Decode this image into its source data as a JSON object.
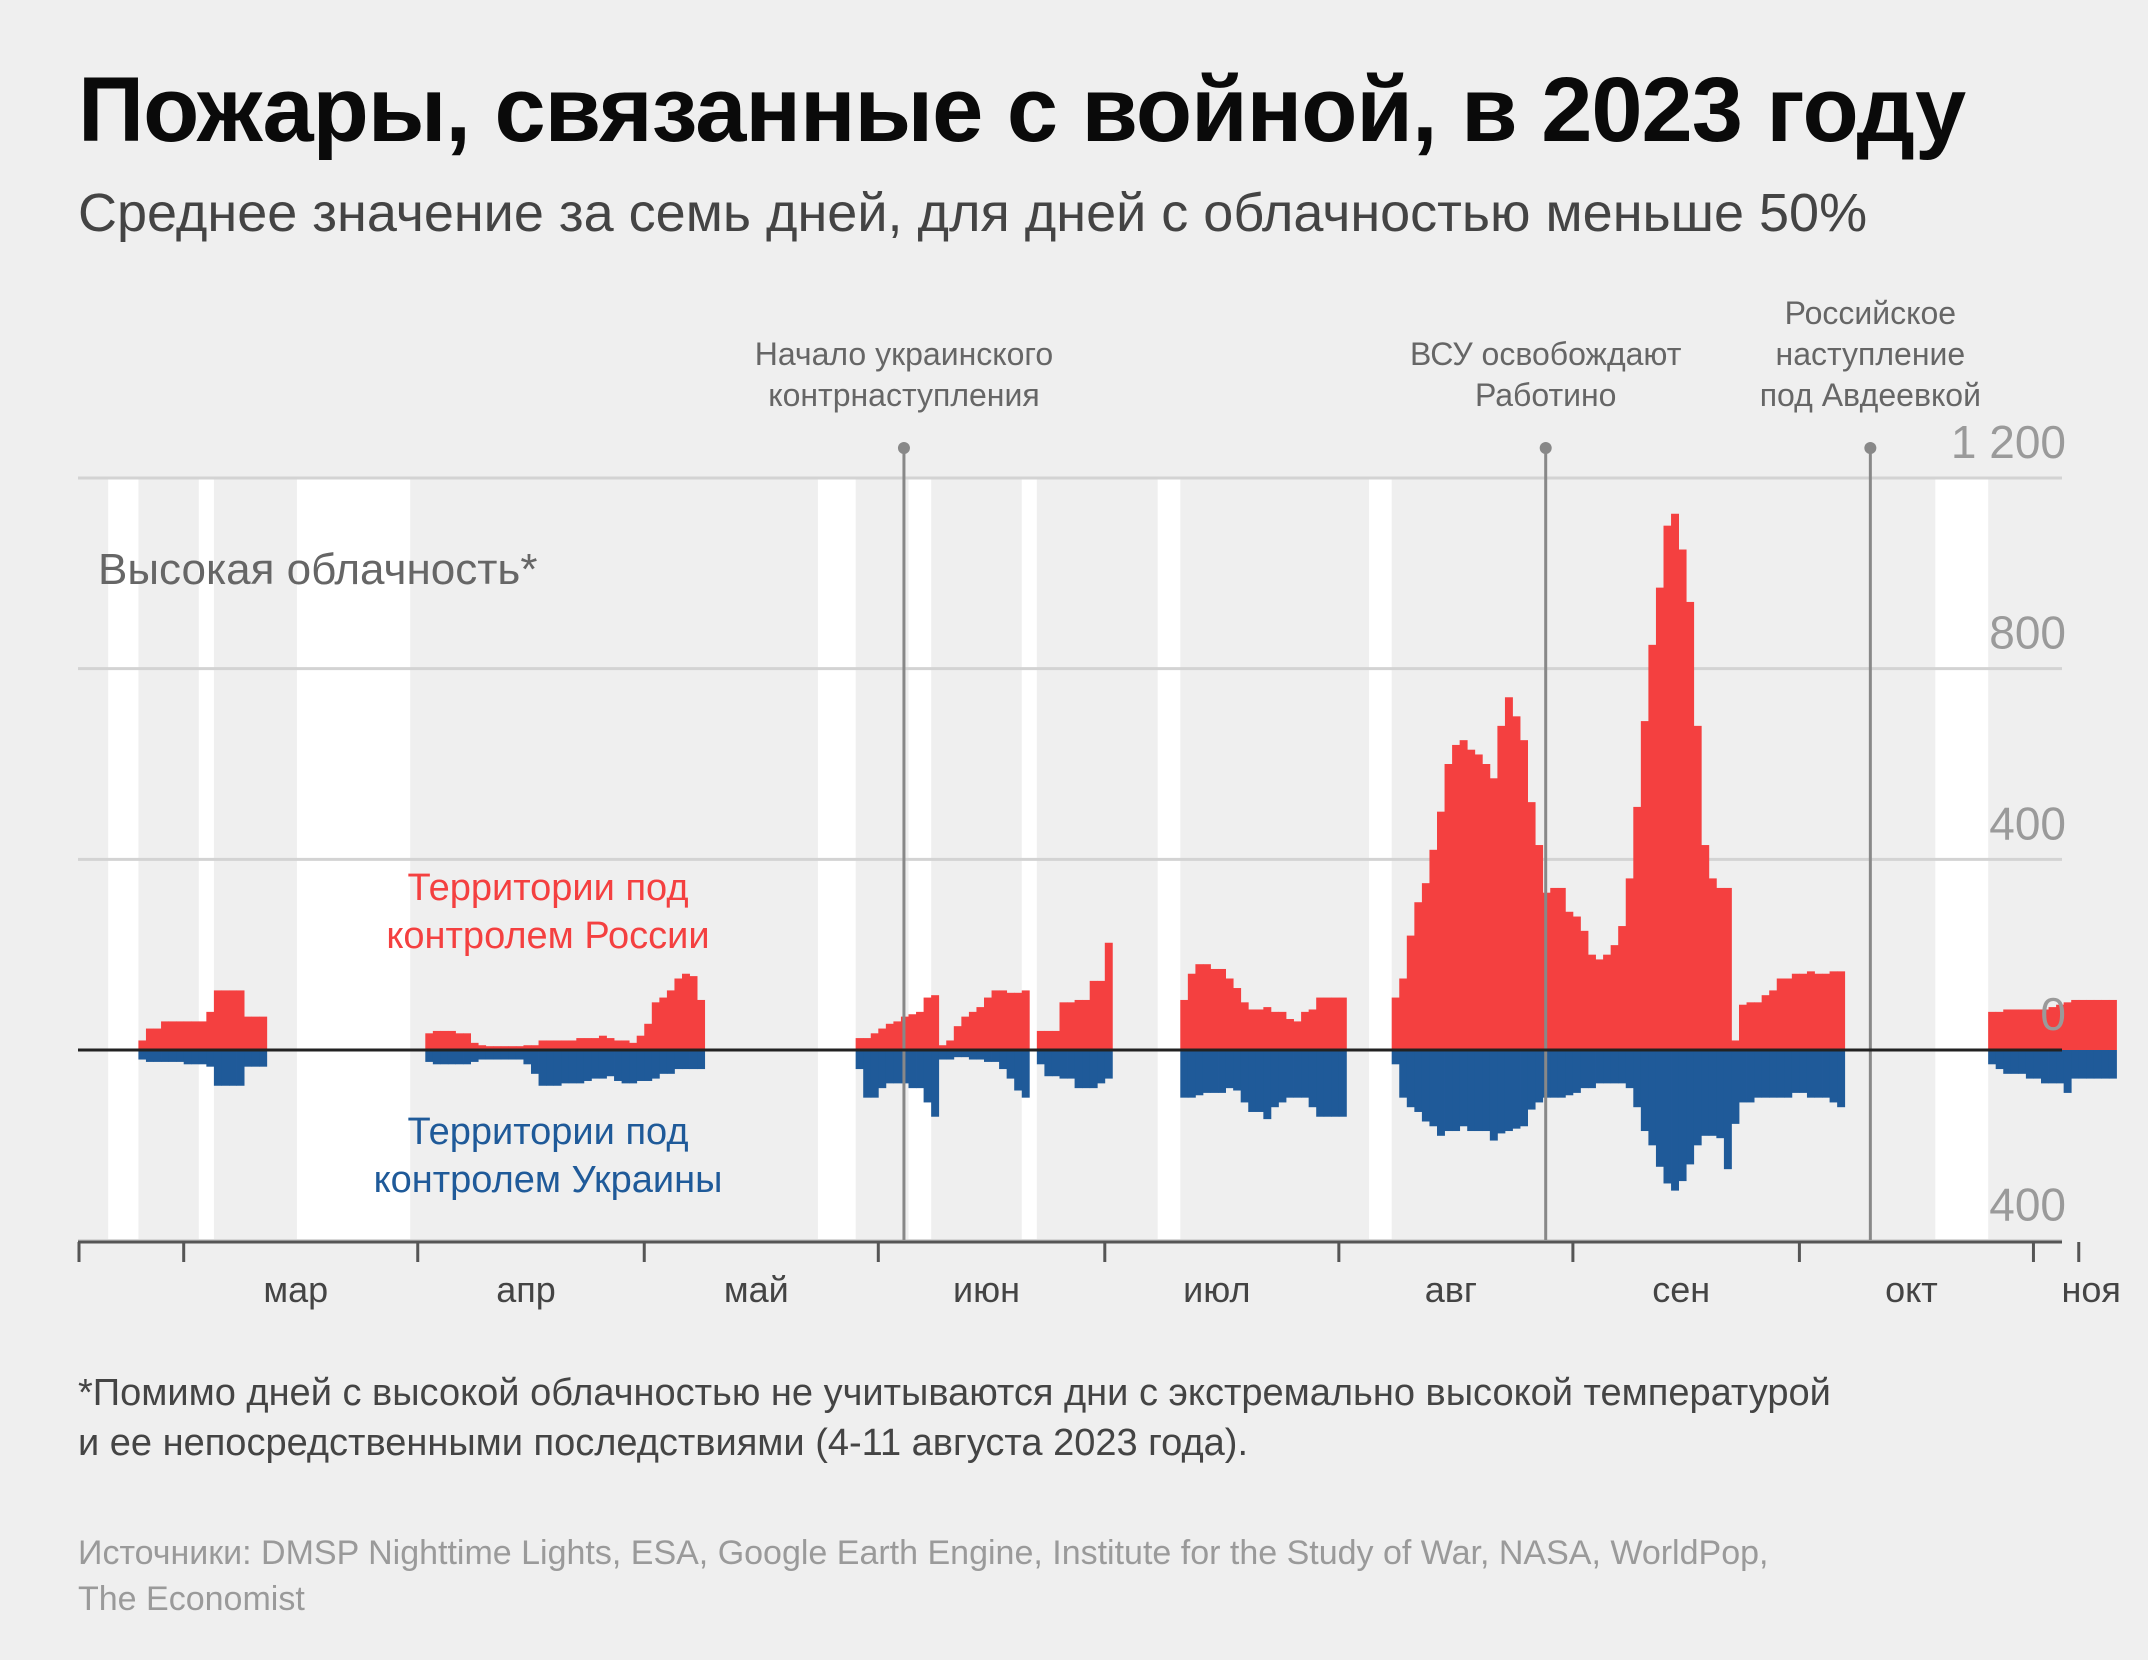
{
  "title": "Пожары, связанные с войной, в 2023 году",
  "subtitle": "Среднее значение за семь дней, для дней с облачностью меньше 50%",
  "footnote": [
    " *Помимо дней с высокой облачностью не учитываются дни с экстремально высокой температурой",
    "и ее непосредственными последствиями (4-11 августа 2023 года)."
  ],
  "sources": [
    "Источники: DMSP Nighttime Lights, ESA, Google Earth Engine, Institute for the Study of War, NASA, WorldPop,",
    "The Economist"
  ],
  "colors": {
    "russia": "#f44040",
    "ukraine": "#1f5a99",
    "grid": "#d3d3d3",
    "cloud_band": "#ffffff",
    "event_line": "#888888",
    "axis": "#222222"
  },
  "chart_data": {
    "type": "area",
    "description_unit": "fires per day, 7-day average",
    "x_type": "date",
    "x_range": [
      "2023-02-15",
      "2023-11-20"
    ],
    "ylim": [
      -400,
      1200
    ],
    "y_ticks": [
      {
        "value": 1200,
        "label": "1 200"
      },
      {
        "value": 800,
        "label": "800"
      },
      {
        "value": 400,
        "label": "400"
      },
      {
        "value": 0,
        "label": "0"
      },
      {
        "value": -400,
        "label": "400"
      }
    ],
    "month_ticks": [
      {
        "date": "2023-03-01",
        "label": "мар"
      },
      {
        "date": "2023-04-01",
        "label": "апр"
      },
      {
        "date": "2023-05-01",
        "label": "май"
      },
      {
        "date": "2023-06-01",
        "label": "июн"
      },
      {
        "date": "2023-07-01",
        "label": "июл"
      },
      {
        "date": "2023-08-01",
        "label": "авг"
      },
      {
        "date": "2023-09-01",
        "label": "сен"
      },
      {
        "date": "2023-10-01",
        "label": "окт"
      },
      {
        "date": "2023-11-01",
        "label": "ноя"
      }
    ],
    "cloud_label": "Высокая облачность*",
    "cloud_bands": [
      [
        "2023-02-19",
        "2023-02-22"
      ],
      [
        "2023-03-03",
        "2023-03-04"
      ],
      [
        "2023-03-16",
        "2023-03-30"
      ],
      [
        "2023-05-24",
        "2023-05-28"
      ],
      [
        "2023-06-05",
        "2023-06-07"
      ],
      [
        "2023-06-20",
        "2023-06-21"
      ],
      [
        "2023-07-08",
        "2023-07-10"
      ],
      [
        "2023-08-05",
        "2023-08-07"
      ],
      [
        "2023-10-19",
        "2023-10-25"
      ]
    ],
    "events": [
      {
        "date": "2023-06-04",
        "label": [
          "Начало украинского",
          "контрнаступления"
        ]
      },
      {
        "date": "2023-08-28",
        "label": [
          "ВСУ освобождают",
          "Работино"
        ]
      },
      {
        "date": "2023-10-10",
        "label": [
          "Российское",
          "наступление",
          "под Авдеевкой"
        ]
      }
    ],
    "series": [
      {
        "name": "Территории под контролем России",
        "label": [
          "Территории под",
          "контролем России"
        ],
        "segments": [
          {
            "start": "2023-02-23",
            "values": [
              20,
              45,
              45,
              60,
              60,
              60,
              60,
              60,
              60,
              80
            ]
          },
          {
            "start": "2023-03-05",
            "values": [
              125,
              125,
              125,
              125,
              70,
              70,
              70
            ]
          },
          {
            "start": "2023-04-02",
            "values": [
              35,
              40,
              40,
              40,
              35,
              35,
              15,
              10
            ]
          },
          {
            "start": "2023-04-10",
            "values": [
              8,
              8,
              8,
              8,
              8,
              10,
              10,
              20,
              20,
              20,
              20,
              20,
              25,
              25,
              25,
              30,
              25,
              20,
              20,
              15,
              30,
              55,
              100,
              110,
              125,
              150,
              160,
              155,
              105
            ]
          },
          {
            "start": "2023-05-29",
            "values": [
              25,
              25,
              35,
              45,
              55,
              60,
              70,
              75,
              80,
              110,
              115
            ]
          },
          {
            "start": "2023-06-09",
            "values": [
              10,
              20,
              50,
              70,
              80,
              90,
              110,
              125,
              125,
              120,
              120,
              125
            ]
          },
          {
            "start": "2023-06-22",
            "values": [
              40,
              40,
              40,
              100,
              100,
              105,
              105,
              145,
              145,
              225
            ]
          },
          {
            "start": "2023-07-11",
            "values": [
              105,
              160,
              180,
              180,
              170,
              170,
              150,
              130,
              100,
              85,
              85,
              90,
              80,
              80,
              65,
              60,
              80,
              85,
              110,
              110,
              110,
              110
            ]
          },
          {
            "start": "2023-08-08",
            "values": [
              110,
              150,
              240,
              310,
              350,
              420,
              500,
              600,
              640,
              650,
              630,
              620,
              600,
              570,
              680,
              740,
              700,
              650,
              520,
              430,
              330,
              340,
              340,
              290,
              280,
              250,
              200,
              190,
              200,
              220,
              260,
              360,
              510,
              690,
              850,
              970,
              1100,
              1125,
              1050,
              940,
              680,
              430,
              360,
              340,
              340,
              20
            ]
          },
          {
            "start": "2023-09-23",
            "values": [
              95,
              100,
              100,
              115,
              125,
              150,
              150,
              160,
              160,
              165,
              160,
              160,
              165,
              165
            ]
          },
          {
            "start": "2023-10-26",
            "values": [
              80,
              80,
              85,
              85,
              85,
              85,
              85,
              85,
              90,
              95,
              100,
              105,
              105,
              105,
              105,
              105,
              105
            ]
          }
        ]
      },
      {
        "name": "Территории под контролем Украины",
        "label": [
          "Территории под",
          "контролем Украины"
        ],
        "segments": [
          {
            "start": "2023-02-23",
            "values": [
              20,
              25,
              25,
              25,
              25,
              25,
              30,
              30,
              30,
              35
            ]
          },
          {
            "start": "2023-03-05",
            "values": [
              75,
              75,
              75,
              75,
              35,
              35,
              35
            ]
          },
          {
            "start": "2023-04-02",
            "values": [
              25,
              30,
              30,
              30,
              30,
              30,
              25,
              20
            ]
          },
          {
            "start": "2023-04-10",
            "values": [
              20,
              20,
              20,
              20,
              20,
              30,
              50,
              75,
              75,
              75,
              70,
              70,
              70,
              65,
              60,
              60,
              55,
              65,
              70,
              70,
              65,
              65,
              60,
              50,
              50,
              40,
              40,
              40,
              40
            ]
          },
          {
            "start": "2023-05-29",
            "values": [
              40,
              100,
              100,
              80,
              70,
              70,
              70,
              80,
              80,
              110,
              140
            ]
          },
          {
            "start": "2023-06-09",
            "values": [
              20,
              20,
              15,
              15,
              20,
              20,
              25,
              25,
              40,
              60,
              85,
              100
            ]
          },
          {
            "start": "2023-06-22",
            "values": [
              30,
              55,
              55,
              60,
              60,
              80,
              80,
              80,
              70,
              60
            ]
          },
          {
            "start": "2023-07-11",
            "values": [
              100,
              100,
              95,
              90,
              90,
              90,
              80,
              85,
              110,
              130,
              130,
              145,
              120,
              110,
              100,
              100,
              100,
              120,
              140,
              140,
              140,
              140
            ]
          },
          {
            "start": "2023-08-08",
            "values": [
              30,
              100,
              120,
              130,
              150,
              160,
              180,
              170,
              170,
              160,
              170,
              170,
              170,
              190,
              175,
              170,
              165,
              160,
              125,
              110,
              100,
              100,
              100,
              95,
              90,
              80,
              80,
              70,
              70,
              70,
              70,
              80,
              120,
              170,
              200,
              245,
              280,
              295,
              275,
              240,
              200,
              180,
              180,
              185,
              250,
              155
            ]
          },
          {
            "start": "2023-09-23",
            "values": [
              110,
              110,
              100,
              100,
              100,
              100,
              100,
              90,
              90,
              100,
              100,
              100,
              110,
              120
            ]
          },
          {
            "start": "2023-10-26",
            "values": [
              30,
              40,
              50,
              50,
              50,
              60,
              60,
              70,
              70,
              70,
              90,
              60,
              60,
              60,
              60,
              60,
              60
            ]
          }
        ]
      }
    ]
  }
}
